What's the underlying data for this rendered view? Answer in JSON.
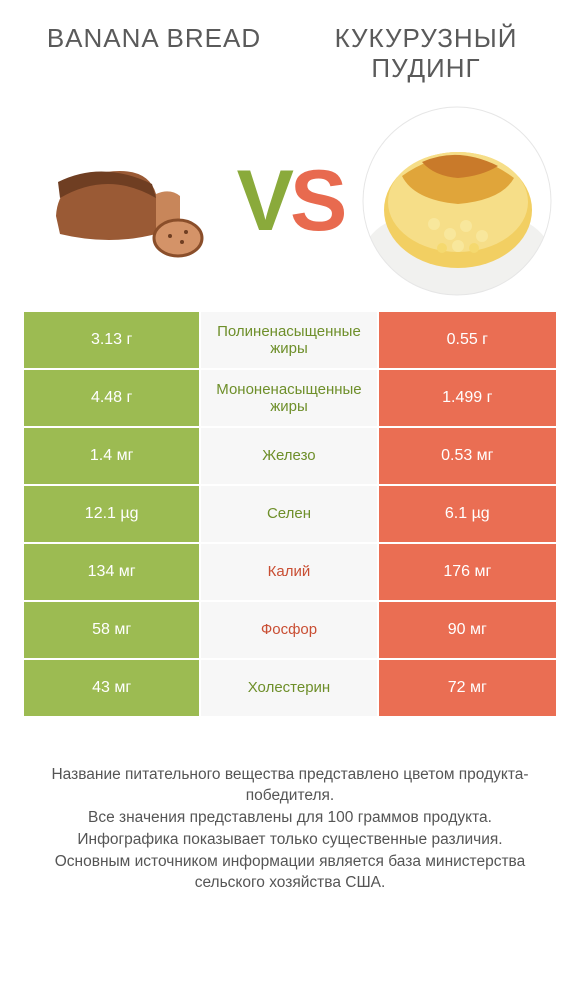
{
  "titles": {
    "left": "BANANA BREAD",
    "right": "КУКУРУЗНЫЙ ПУДИНГ"
  },
  "vs": {
    "v": "V",
    "s": "S"
  },
  "colors": {
    "green_bg": "#9cbb52",
    "orange_bg": "#ea6e53",
    "green_txt": "#6e8f2a",
    "orange_txt": "#c94e33",
    "mid_bg": "#f7f7f7"
  },
  "rows": [
    {
      "left": "3.13 г",
      "label": "Полиненасыщенные жиры",
      "right": "0.55 г",
      "winner": "left"
    },
    {
      "left": "4.48 г",
      "label": "Мононенасыщенные жиры",
      "right": "1.499 г",
      "winner": "left"
    },
    {
      "left": "1.4 мг",
      "label": "Железо",
      "right": "0.53 мг",
      "winner": "left"
    },
    {
      "left": "12.1 µg",
      "label": "Селен",
      "right": "6.1 µg",
      "winner": "left"
    },
    {
      "left": "134 мг",
      "label": "Калий",
      "right": "176 мг",
      "winner": "right"
    },
    {
      "left": "58 мг",
      "label": "Фосфор",
      "right": "90 мг",
      "winner": "right"
    },
    {
      "left": "43 мг",
      "label": "Холестерин",
      "right": "72 мг",
      "winner": "left"
    }
  ],
  "footnote": {
    "l1": "Название питательного вещества представлено цветом продукта-победителя.",
    "l2": "Все значения представлены для 100 граммов продукта.",
    "l3": "Инфографика показывает только существенные различия.",
    "l4": "Основным источником информации является база министерства сельского хозяйства США."
  }
}
